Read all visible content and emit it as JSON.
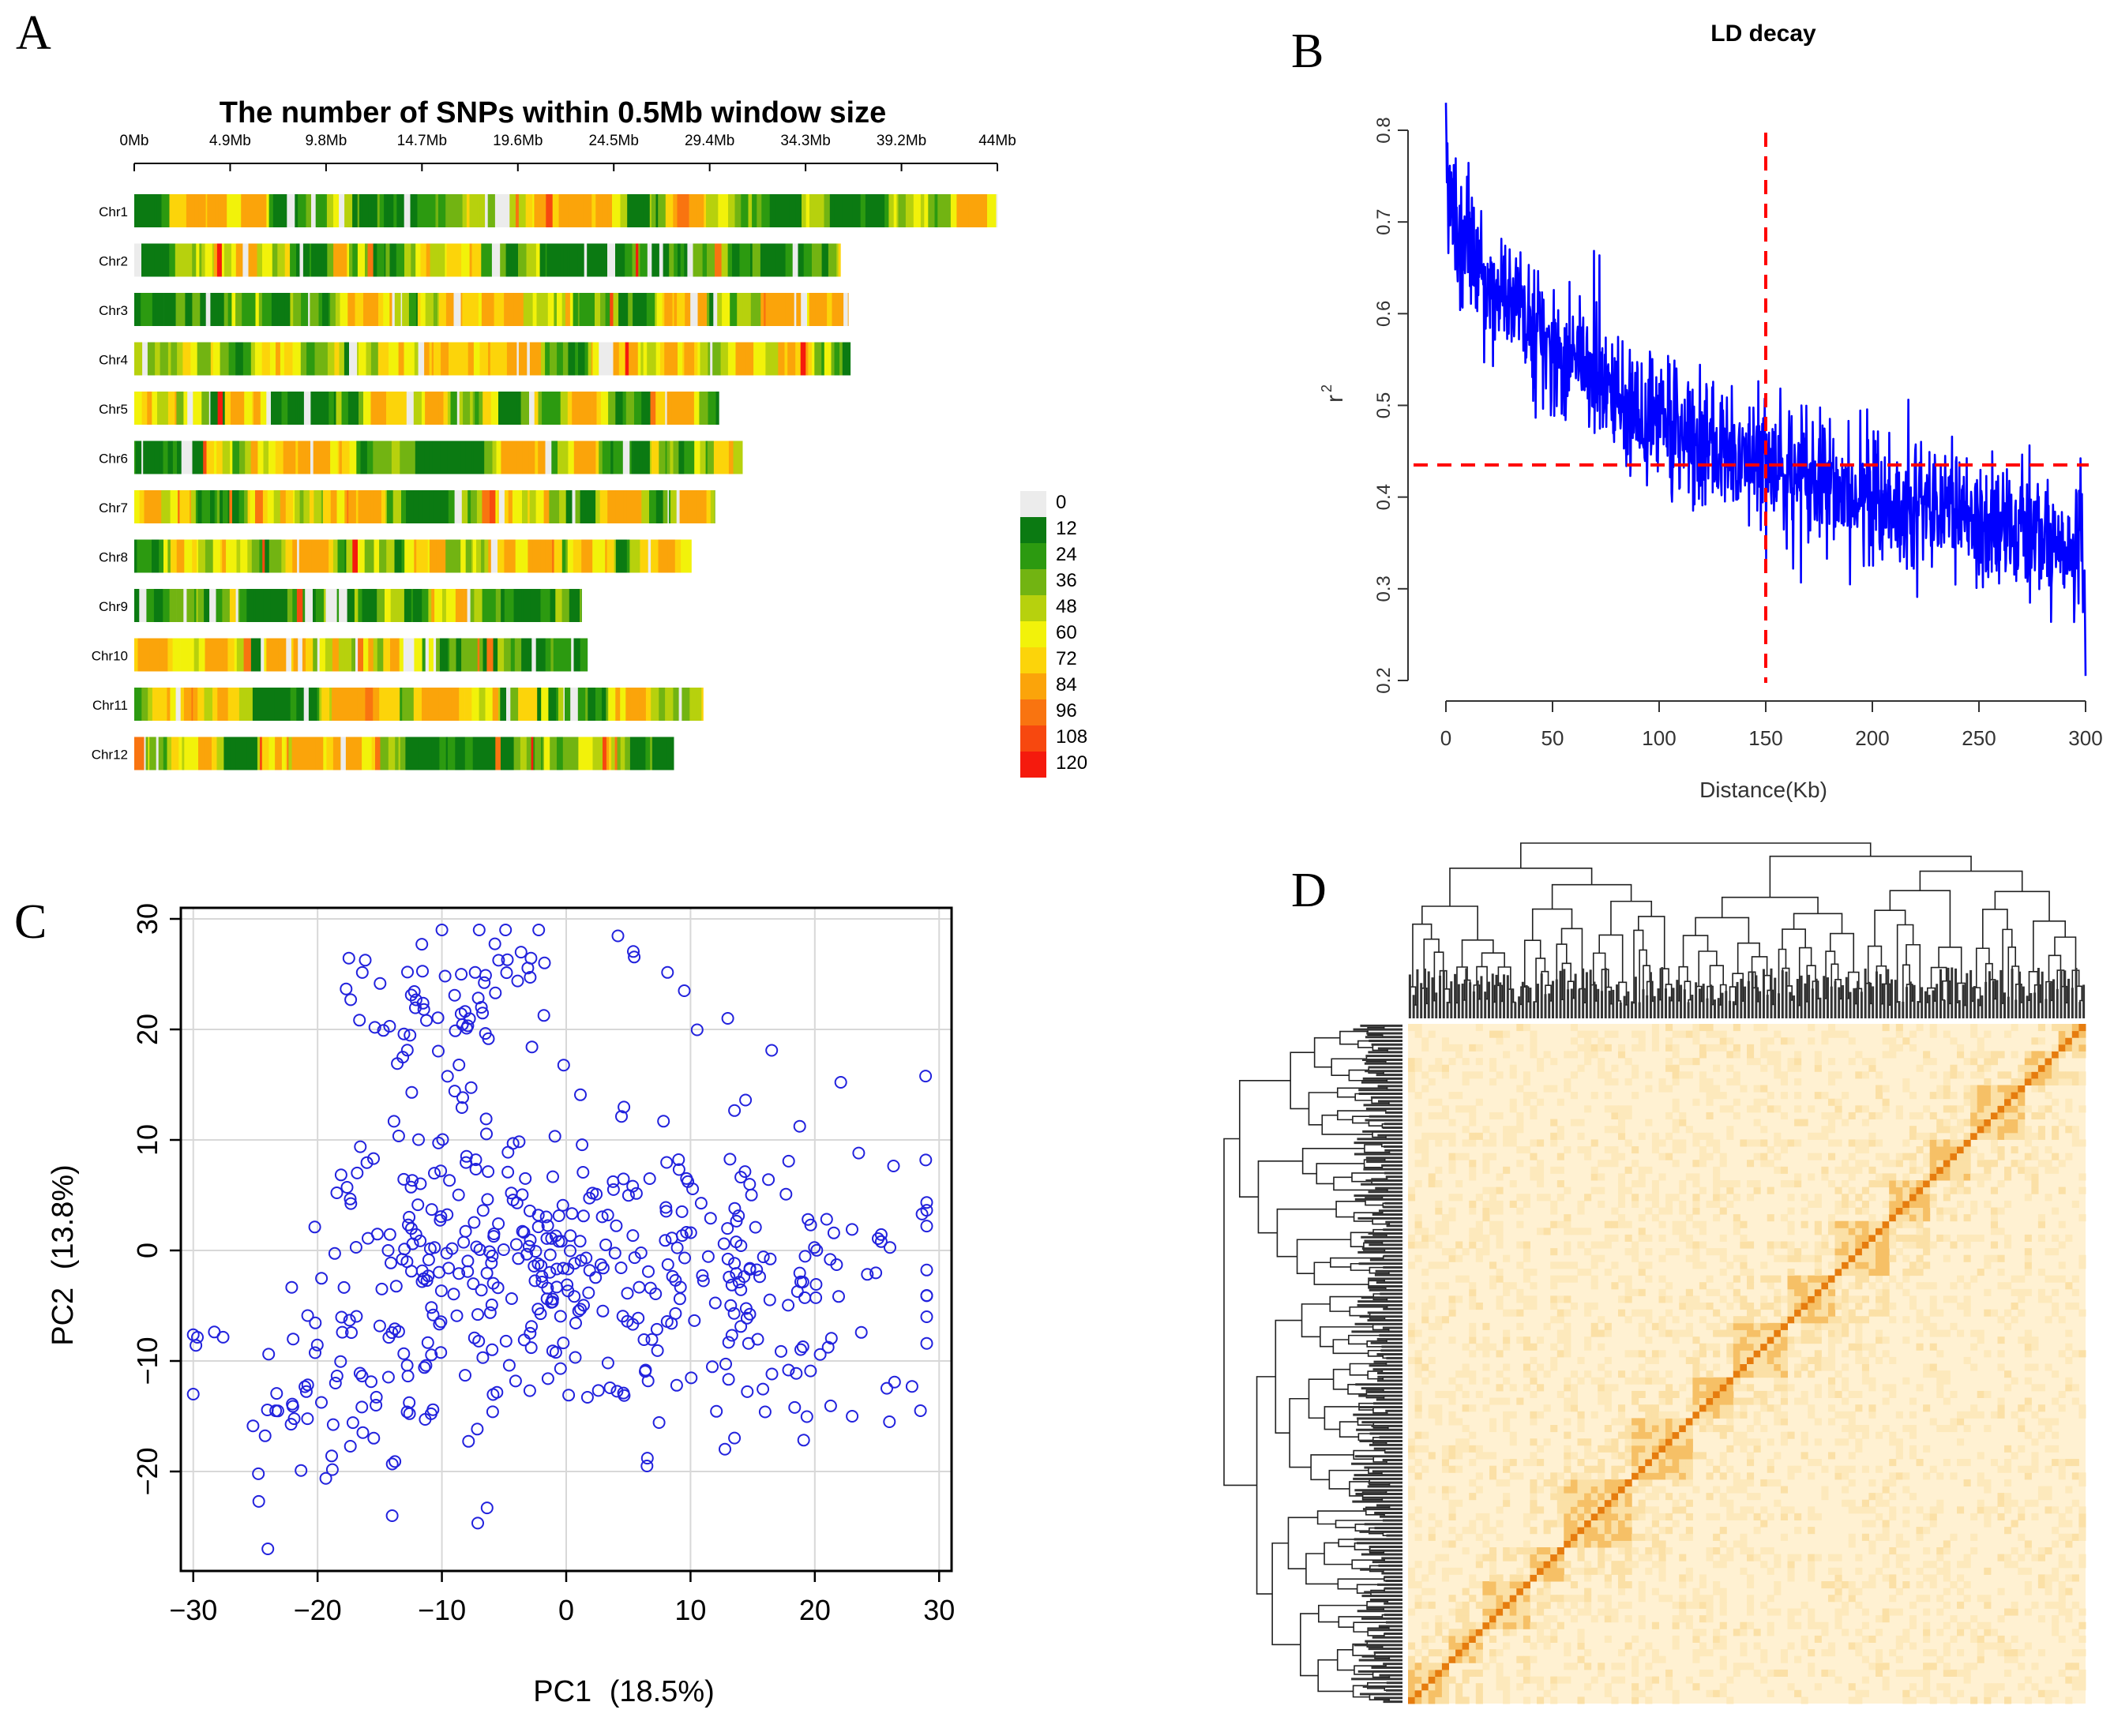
{
  "panels": {
    "A": {
      "letter": "A",
      "chart_data": {
        "type": "heatmap",
        "title": "The number of SNPs within 0.5Mb window size",
        "x_ticks": [
          "0Mb",
          "4.9Mb",
          "9.8Mb",
          "14.7Mb",
          "19.6Mb",
          "24.5Mb",
          "29.4Mb",
          "34.3Mb",
          "39.2Mb",
          "44Mb"
        ],
        "x_range_mb": [
          0,
          44
        ],
        "chromosomes": [
          {
            "name": "Chr1",
            "length_mb": 44.0
          },
          {
            "name": "Chr2",
            "length_mb": 36.0
          },
          {
            "name": "Chr3",
            "length_mb": 36.4
          },
          {
            "name": "Chr4",
            "length_mb": 36.5
          },
          {
            "name": "Chr5",
            "length_mb": 29.8
          },
          {
            "name": "Chr6",
            "length_mb": 31.0
          },
          {
            "name": "Chr7",
            "length_mb": 29.6
          },
          {
            "name": "Chr8",
            "length_mb": 28.4
          },
          {
            "name": "Chr9",
            "length_mb": 22.8
          },
          {
            "name": "Chr10",
            "length_mb": 23.1
          },
          {
            "name": "Chr11",
            "length_mb": 29.0
          },
          {
            "name": "Chr12",
            "length_mb": 27.5
          }
        ],
        "legend": {
          "labels": [
            "0",
            "12",
            "24",
            "36",
            "48",
            "60",
            "72",
            "84",
            "96",
            "108",
            "120"
          ],
          "colors": [
            "#ececec",
            "#0b7a12",
            "#2c9a10",
            "#72b412",
            "#b7d10d",
            "#f2f20a",
            "#fcd40a",
            "#fba40a",
            "#f97410",
            "#f7480f",
            "#f51a0d"
          ]
        }
      }
    },
    "B": {
      "letter": "B",
      "chart_data": {
        "type": "line",
        "title": "LD decay",
        "xlabel": "Distance(Kb)",
        "ylabel": "r2",
        "xlim": [
          0,
          300
        ],
        "ylim": [
          0.2,
          0.8
        ],
        "x_ticks": [
          0,
          50,
          100,
          150,
          200,
          250,
          300
        ],
        "y_ticks": [
          "0.2",
          "0.3",
          "0.4",
          "0.5",
          "0.6",
          "0.7",
          "0.8"
        ],
        "curve_trend": [
          {
            "x": 0,
            "r2": 0.73
          },
          {
            "x": 5,
            "r2": 0.69
          },
          {
            "x": 25,
            "r2": 0.62
          },
          {
            "x": 50,
            "r2": 0.56
          },
          {
            "x": 75,
            "r2": 0.52
          },
          {
            "x": 100,
            "r2": 0.48
          },
          {
            "x": 125,
            "r2": 0.455
          },
          {
            "x": 150,
            "r2": 0.435
          },
          {
            "x": 175,
            "r2": 0.415
          },
          {
            "x": 200,
            "r2": 0.4
          },
          {
            "x": 250,
            "r2": 0.375
          },
          {
            "x": 300,
            "r2": 0.345
          }
        ],
        "noise_amplitude": 0.035,
        "max_point": {
          "x": 0,
          "r2": 0.83
        },
        "end_drop": {
          "x": 300,
          "r2": 0.205
        },
        "reference_lines": {
          "vertical_x": 150,
          "horizontal_r2": 0.435
        }
      }
    },
    "C": {
      "letter": "C",
      "chart_data": {
        "type": "scatter",
        "xlabel": "PC1",
        "xlabel_pct": "(18.5%)",
        "ylabel": "PC2",
        "ylabel_pct": "(13.8%)",
        "xlim": [
          -31,
          31
        ],
        "ylim": [
          -29,
          31
        ],
        "x_ticks": [
          "−30",
          "−20",
          "−10",
          "0",
          "10",
          "20",
          "30"
        ],
        "y_ticks": [
          "−20",
          "−10",
          "0",
          "10",
          "20",
          "30"
        ],
        "grid": true,
        "point_count": 540,
        "clusters": [
          {
            "n": 60,
            "cx": -8,
            "cy": 23,
            "sx": 5.5,
            "sy": 3.2
          },
          {
            "n": 290,
            "cx": 0,
            "cy": -2,
            "sx": 10,
            "sy": 7
          },
          {
            "n": 90,
            "cx": 18,
            "cy": -3,
            "sx": 6,
            "sy": 6
          },
          {
            "n": 60,
            "cx": -18,
            "cy": -13,
            "sx": 5,
            "sy": 6
          },
          {
            "n": 40,
            "cx": -10,
            "cy": 8,
            "sx": 5,
            "sy": 5
          }
        ],
        "sample_points": [
          [
            -7,
            29
          ],
          [
            -10,
            29
          ],
          [
            9.5,
            23.5
          ],
          [
            13,
            21
          ],
          [
            -30,
            -13
          ],
          [
            -24,
            -27
          ],
          [
            29,
            -6
          ],
          [
            28.5,
            -14.5
          ],
          [
            6.5,
            -19.5
          ],
          [
            -14,
            -24
          ],
          [
            23,
            -15
          ],
          [
            26,
            -15.5
          ]
        ]
      }
    },
    "D": {
      "letter": "D",
      "chart_data": {
        "type": "heatmap",
        "description_free": true,
        "matrix_size": 100,
        "diagonal_blocks": [
          [
            0,
            6
          ],
          [
            6,
            11
          ],
          [
            11,
            18
          ],
          [
            18,
            23
          ],
          [
            23,
            33
          ],
          [
            33,
            42
          ],
          [
            42,
            48
          ],
          [
            48,
            56
          ],
          [
            56,
            63
          ],
          [
            63,
            71
          ],
          [
            71,
            77
          ],
          [
            77,
            83
          ],
          [
            83,
            91
          ],
          [
            91,
            96
          ],
          [
            96,
            100
          ]
        ],
        "color_scale": [
          "#fff4dc",
          "#fbe0a6",
          "#f6c066",
          "#ee9a2a",
          "#e67c0e"
        ]
      }
    }
  }
}
